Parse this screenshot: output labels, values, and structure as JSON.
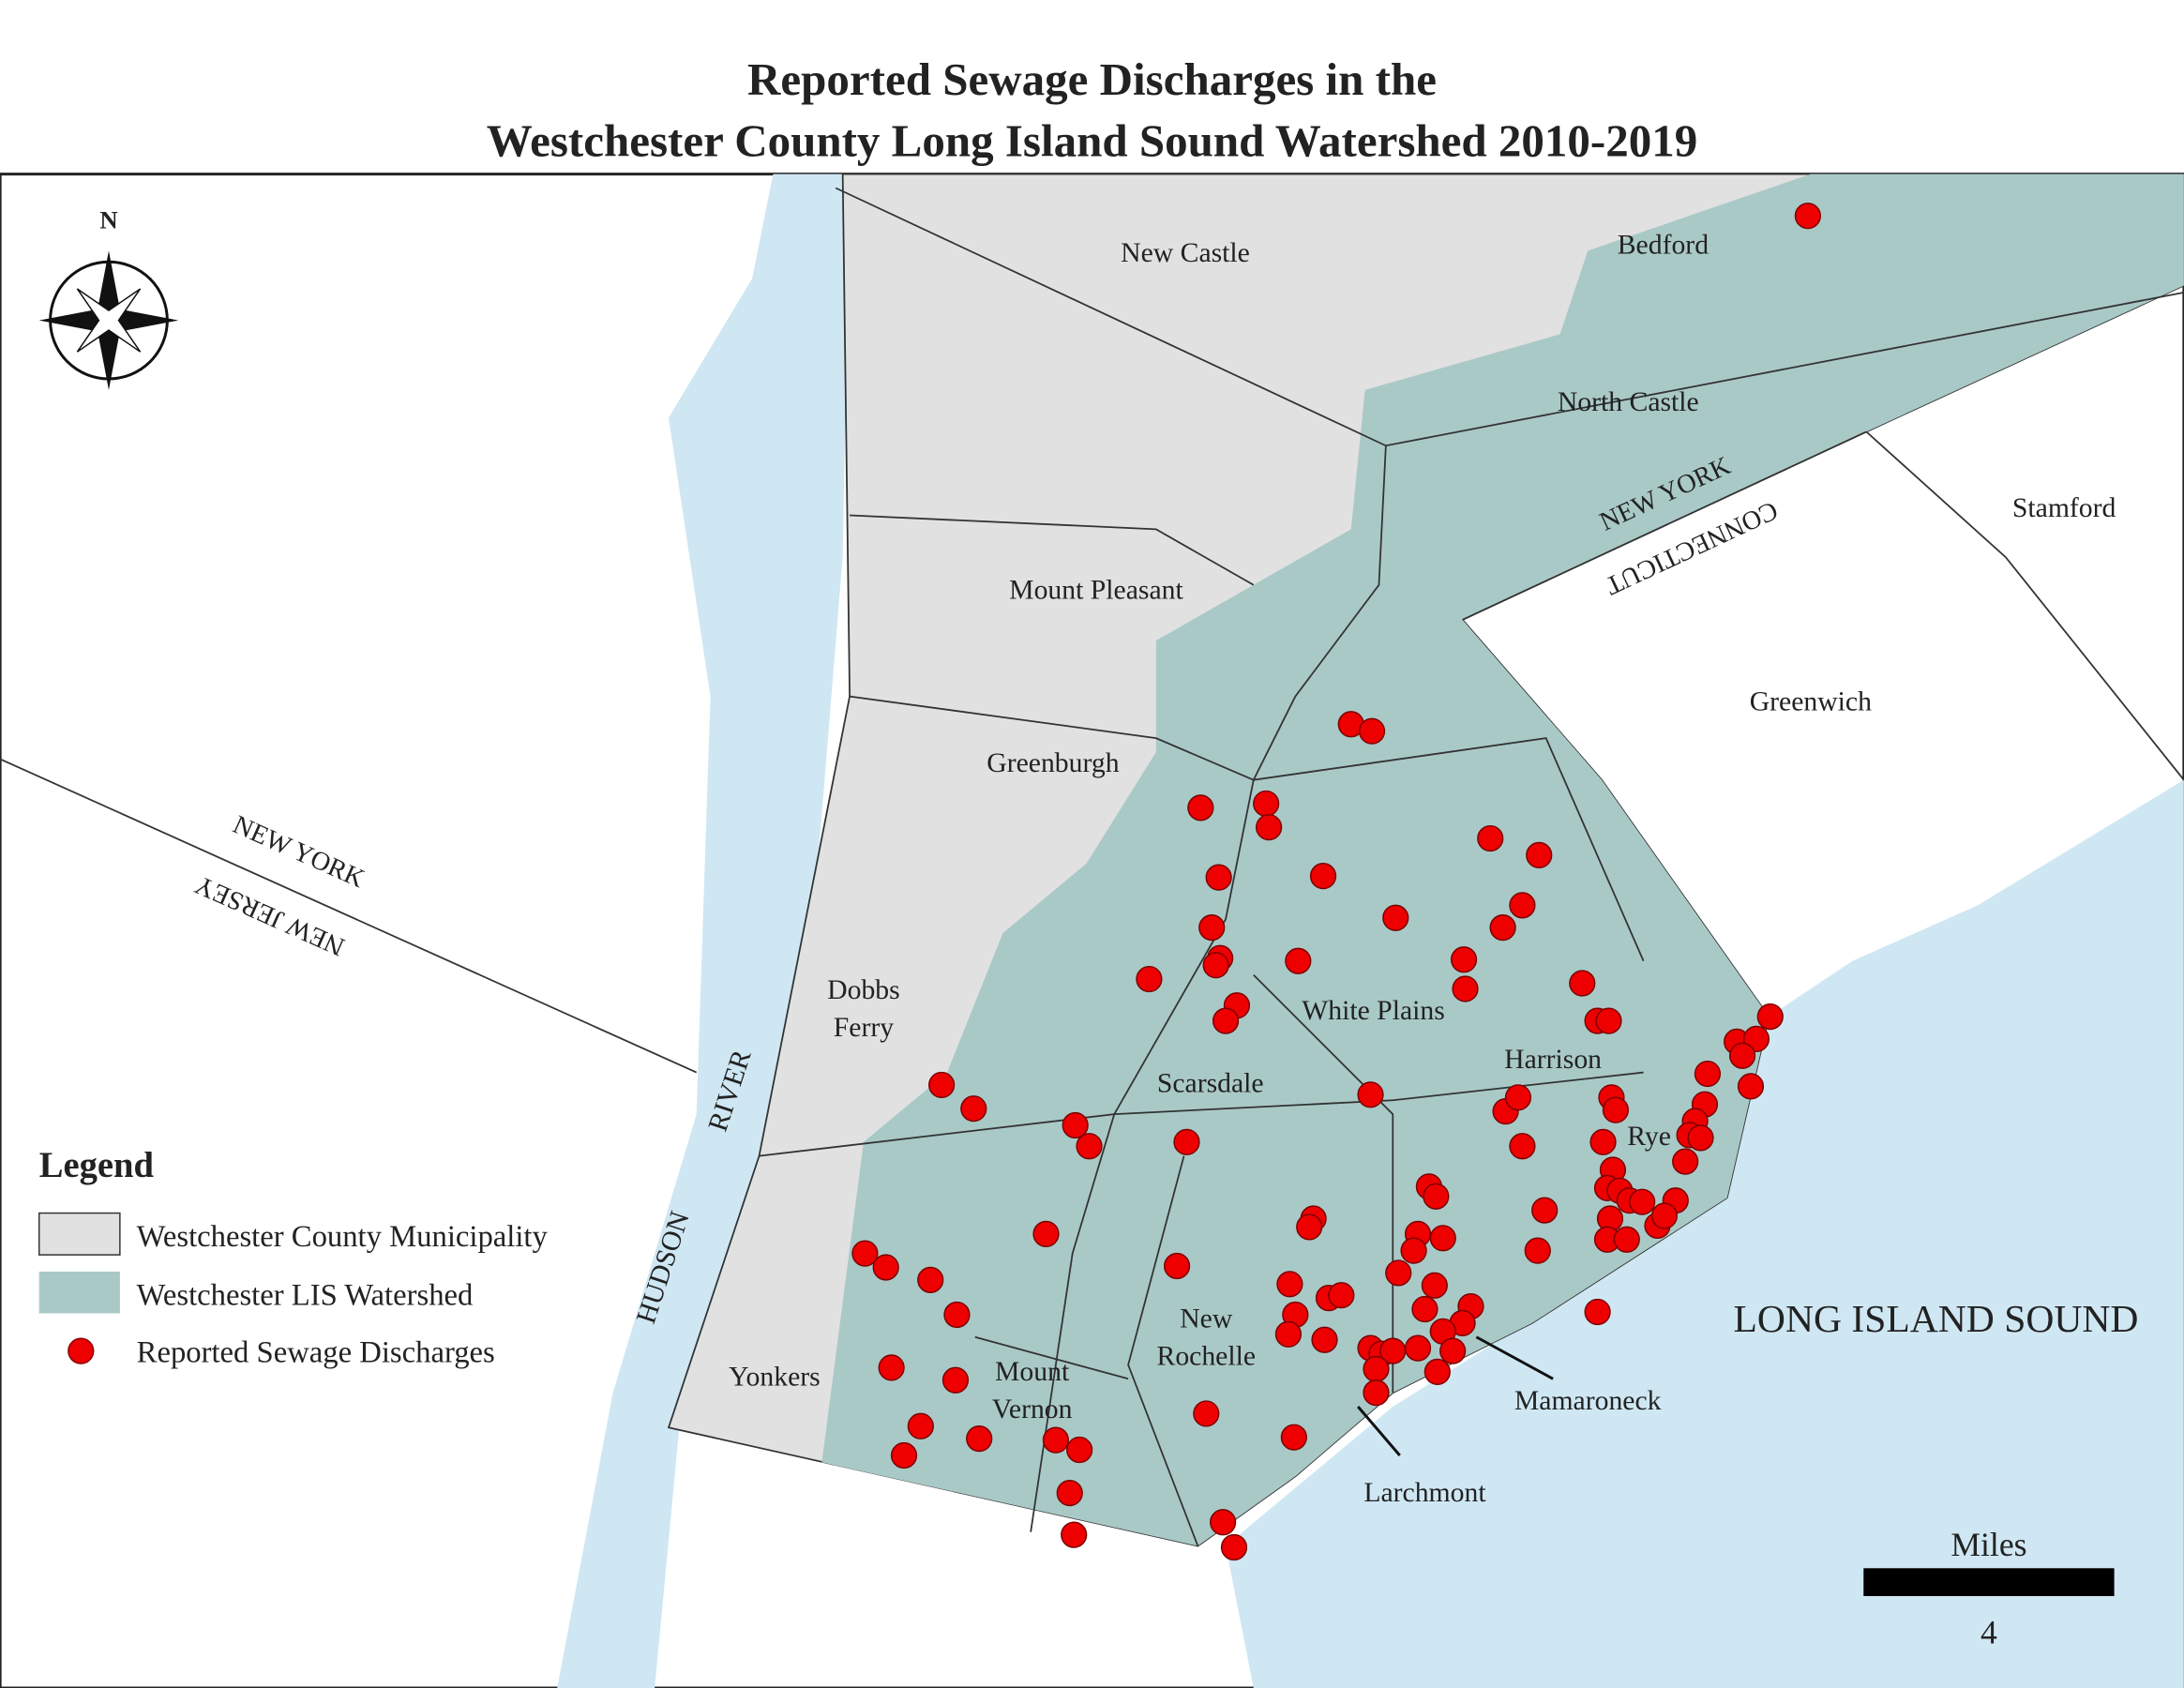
{
  "title": [
    "Reported Sewage Discharges in the",
    "Westchester County Long Island Sound Watershed 2010-2019"
  ],
  "compass": "N",
  "places": [
    "New Castle",
    "Bedford",
    "North Castle",
    "Stamford",
    "Mount Pleasant",
    "Greenwich",
    "Greenburgh",
    "White Plains",
    [
      "Dobbs",
      "Ferry"
    ],
    "Harrison",
    "Scarsdale",
    "Rye",
    [
      "New",
      "Rochelle"
    ],
    [
      "Mount",
      "Vernon"
    ],
    "Yonkers",
    "Mamaroneck",
    "Larchmont"
  ],
  "water": [
    "HUDSON",
    "RIVER",
    "LONG ISLAND SOUND"
  ],
  "borders": [
    "NEW YORK",
    "NEW JERSEY",
    "NEW YORK",
    "CONNECTICUT"
  ],
  "legend": {
    "title": "Legend",
    "items": [
      "Westchester County Municipality",
      "Westchester LIS Watershed",
      "Reported Sewage Discharges"
    ]
  },
  "scale_bar": {
    "unit": "Miles",
    "value": "4"
  }
}
